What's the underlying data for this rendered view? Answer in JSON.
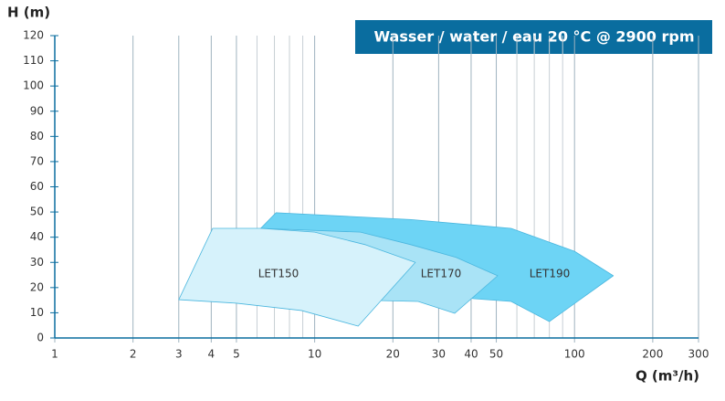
{
  "chart_data": {
    "type": "region",
    "title": "Wasser  /  water  /  eau 20  °C @ 2900 rpm",
    "y_label": "H (m)",
    "x_label": "Q (m³/h)",
    "x_log": true,
    "xlim": [
      1,
      300
    ],
    "ylim": [
      0,
      120
    ],
    "xticks": [
      1,
      2,
      3,
      4,
      5,
      10,
      20,
      30,
      40,
      50,
      100,
      200,
      300
    ],
    "x_minor_grid": [
      6,
      7,
      8,
      9,
      60,
      70,
      80,
      90
    ],
    "yticks": [
      0,
      10,
      20,
      30,
      40,
      50,
      60,
      70,
      80,
      90,
      100,
      110,
      120
    ],
    "series": [
      {
        "name": "LET190",
        "color": "#6dd4f5",
        "x": [
          6.2,
          7.1,
          23.5,
          57,
          100,
          141,
          80,
          57,
          41,
          20
        ],
        "y": [
          43.5,
          49.7,
          47,
          43.5,
          34.4,
          24.7,
          6.5,
          14.5,
          15.6,
          20
        ]
      },
      {
        "name": "LET170",
        "color": "#a9e3f6",
        "x": [
          6.2,
          15,
          23.5,
          35,
          50.6,
          34.6,
          25,
          15
        ],
        "y": [
          43.5,
          42,
          37,
          32,
          24.7,
          9.8,
          14.5,
          15
        ]
      },
      {
        "name": "LET150",
        "color": "#d6f2fb",
        "x": [
          3,
          4.05,
          6.2,
          10,
          15.7,
          24.4,
          14.7,
          8.9,
          5
        ],
        "y": [
          15.2,
          43.5,
          43.5,
          42,
          37,
          30,
          4.7,
          10.9,
          13.8
        ]
      }
    ]
  }
}
